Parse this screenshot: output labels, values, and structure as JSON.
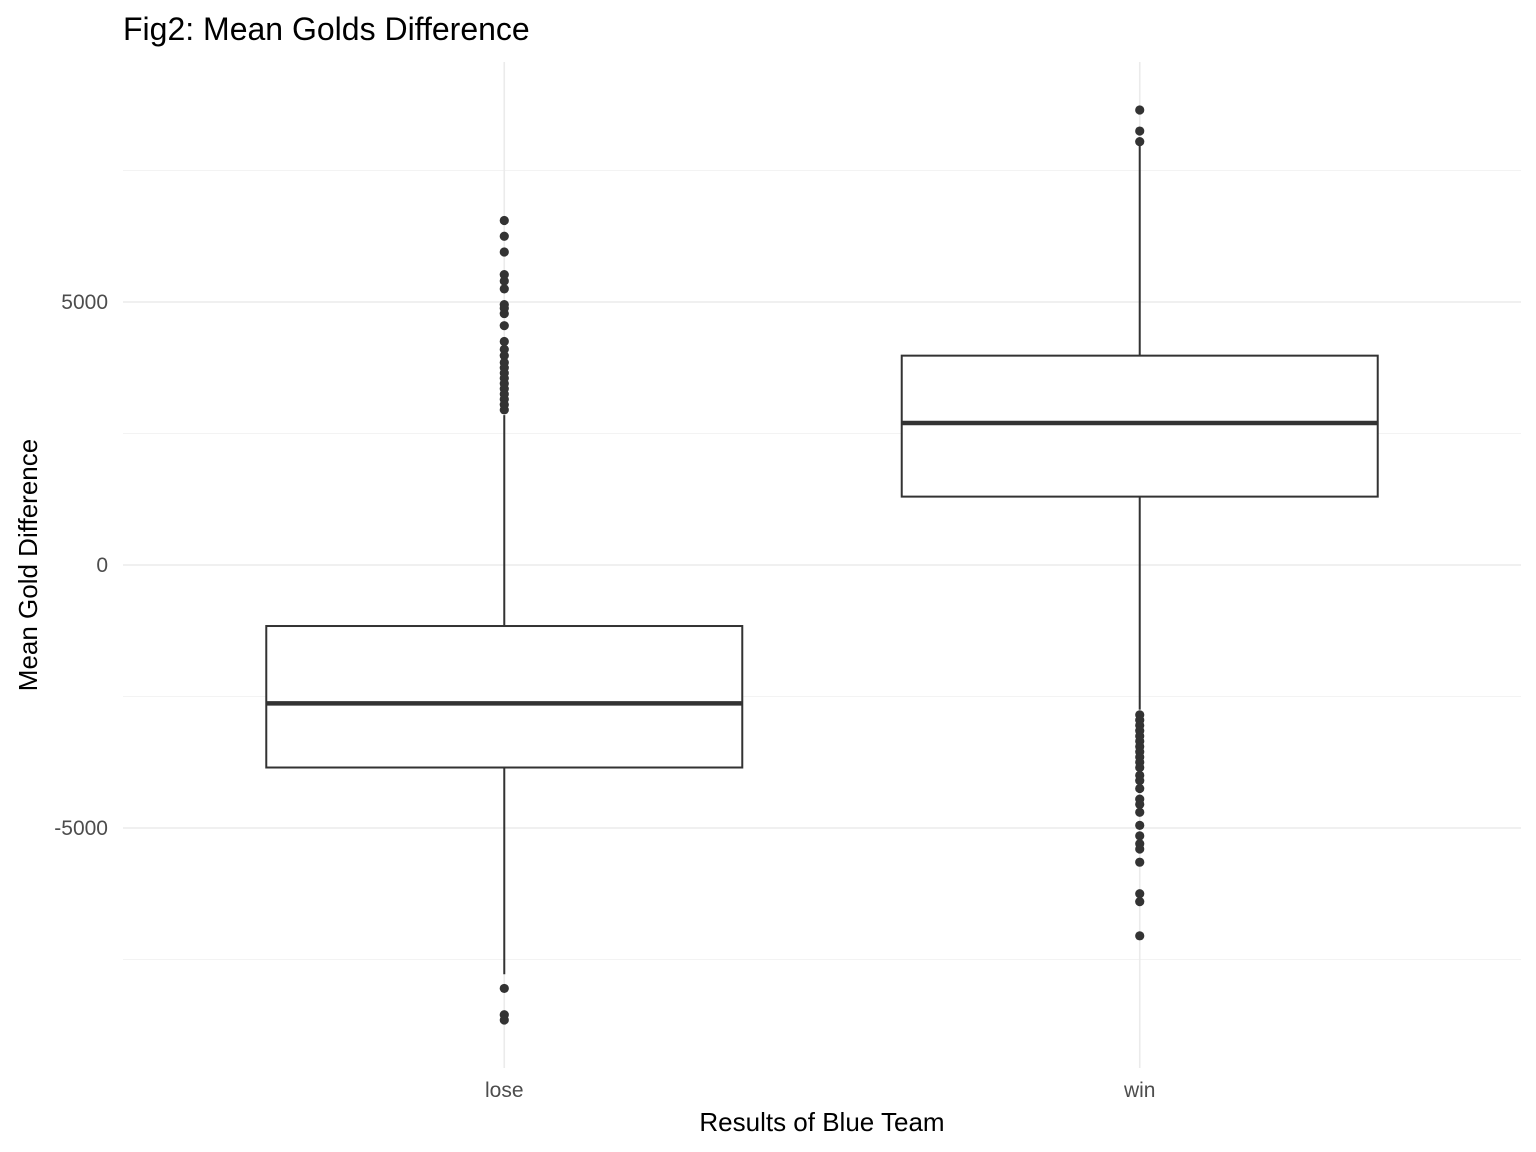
{
  "chart_data": {
    "type": "boxplot",
    "title": "Fig2: Mean Golds Difference",
    "xlabel": "Results of Blue Team",
    "ylabel": "Mean Gold Difference",
    "categories": [
      "lose",
      "win"
    ],
    "ylim": [
      -9500,
      9500
    ],
    "yticks": [
      -5000,
      0,
      5000
    ],
    "ytick_labels": [
      "-5000",
      "0",
      "5000"
    ],
    "grid": true,
    "colors": {
      "box": "#333333",
      "outlier": "#333333",
      "grid": "#ebebeb"
    },
    "boxes": [
      {
        "category": "lose",
        "q1": -3850,
        "median": -2630,
        "q3": -1160,
        "whisker_low": -7780,
        "whisker_high": 2850,
        "outliers": [
          6550,
          6250,
          5950,
          5520,
          5400,
          5250,
          4950,
          4880,
          4780,
          4550,
          4250,
          4100,
          3980,
          3850,
          3750,
          3650,
          3550,
          3450,
          3350,
          3250,
          3150,
          3050,
          2950,
          -8050,
          -8550,
          -8650
        ]
      },
      {
        "category": "win",
        "q1": 1300,
        "median": 2700,
        "q3": 3980,
        "whisker_low": -2750,
        "whisker_high": 8000,
        "outliers": [
          8650,
          8250,
          8050,
          -2850,
          -2950,
          -3050,
          -3150,
          -3250,
          -3350,
          -3450,
          -3550,
          -3650,
          -3750,
          -3850,
          -4000,
          -4100,
          -4250,
          -4450,
          -4550,
          -4700,
          -4950,
          -5150,
          -5300,
          -5400,
          -5650,
          -6250,
          -6400,
          -7050
        ]
      }
    ]
  }
}
